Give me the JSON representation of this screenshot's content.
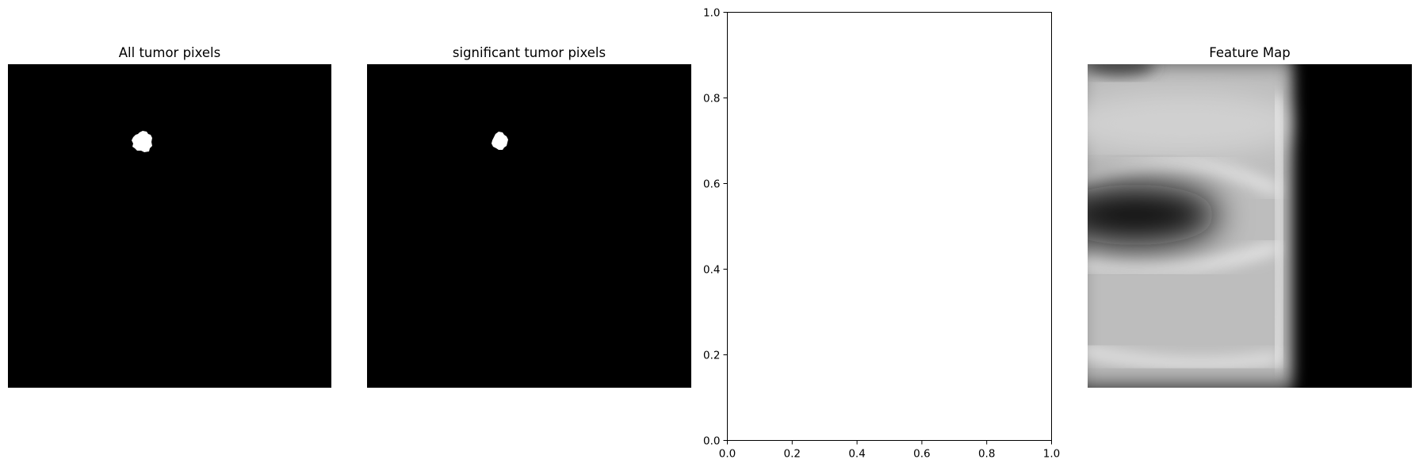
{
  "chart_data": [
    {
      "type": "image",
      "title": "All tumor pixels",
      "colormap": "gray",
      "description_values": {
        "background": 0,
        "tumor_region": 1
      }
    },
    {
      "type": "image",
      "title": "significant tumor pixels",
      "colormap": "gray",
      "description_values": {
        "background": 0,
        "tumor_region": 1
      }
    },
    {
      "type": "scatter",
      "title": "",
      "xlabel": "",
      "ylabel": "",
      "xlim": [
        0.0,
        1.0
      ],
      "ylim": [
        0.0,
        1.0
      ],
      "xticks": [
        "0.0",
        "0.2",
        "0.4",
        "0.6",
        "0.8",
        "1.0"
      ],
      "yticks": [
        "0.0",
        "0.2",
        "0.4",
        "0.6",
        "0.8",
        "1.0"
      ],
      "series": [],
      "grid": false
    },
    {
      "type": "image",
      "title": "Feature Map",
      "colormap": "gray"
    }
  ]
}
